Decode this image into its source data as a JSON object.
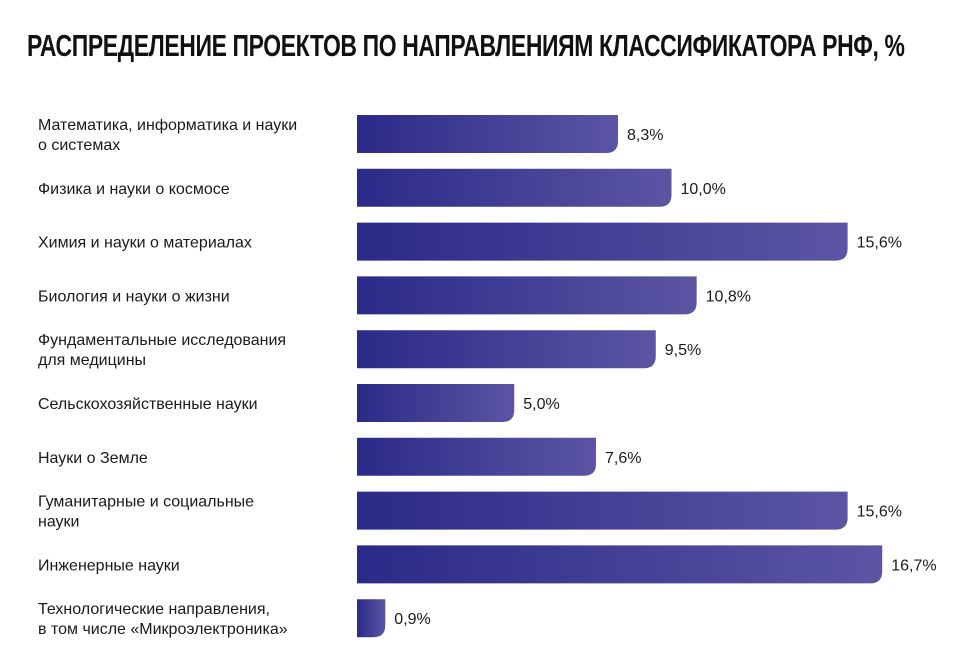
{
  "chart_data": {
    "type": "bar",
    "orientation": "horizontal",
    "title": "РАСПРЕДЕЛЕНИЕ ПРОЕКТОВ ПО НАПРАВЛЕНИЯМ КЛАССИФИКАТОРА РНФ, %",
    "categories": [
      [
        "Математика, информатика и науки",
        "о системах"
      ],
      [
        "Физика и науки о космосе"
      ],
      [
        "Химия и науки о материалах"
      ],
      [
        "Биология и науки о жизни"
      ],
      [
        "Фундаментальные исследования",
        "для медицины"
      ],
      [
        "Сельскохозяйственные науки"
      ],
      [
        "Науки о Земле"
      ],
      [
        "Гуманитарные и социальные",
        "науки"
      ],
      [
        "Инженерные науки"
      ],
      [
        "Технологические направления,",
        "в том числе «Микроэлектроника»"
      ]
    ],
    "values": [
      8.3,
      10.0,
      15.6,
      10.8,
      9.5,
      5.0,
      7.6,
      15.6,
      16.7,
      0.9
    ],
    "data_labels": [
      "8,3%",
      "10,0%",
      "15,6%",
      "10,8%",
      "9,5%",
      "5,0%",
      "7,6%",
      "15,6%",
      "16,7%",
      "0,9%"
    ],
    "grid": false,
    "colors": {
      "bar_start": "#2b2a88",
      "bar_end": "#5b55a3"
    }
  }
}
